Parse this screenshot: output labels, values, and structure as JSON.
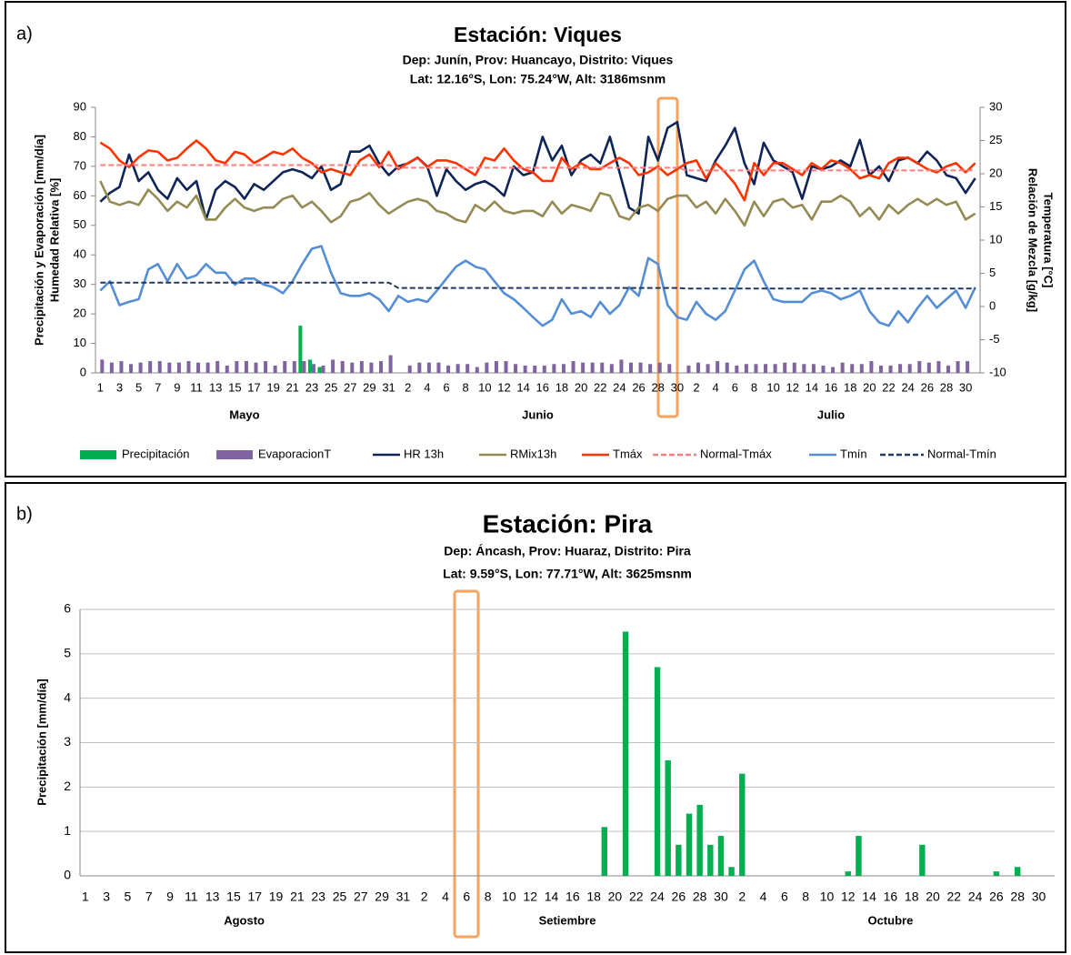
{
  "chart_data": [
    {
      "type": "combo",
      "panel_label": "a)",
      "title": "Estación: Viques",
      "subtitle": [
        "Dep: Junín, Prov: Huancayo, Distrito: Viques",
        "Lat: 12.16°S, Lon: 75.24°W, Alt: 3186msnm"
      ],
      "ylabel": [
        "Precipitación y Evaporación [mm/día]",
        "Humedad Relativa [%]"
      ],
      "y2label": [
        "Temperatura [°C]",
        "Relación de Mezcla [g/kg]"
      ],
      "categories": [
        1,
        null,
        3,
        null,
        5,
        null,
        7,
        null,
        9,
        null,
        11,
        null,
        13,
        null,
        15,
        null,
        17,
        null,
        19,
        null,
        21,
        null,
        23,
        null,
        25,
        null,
        27,
        null,
        29,
        null,
        31,
        null,
        2,
        null,
        4,
        null,
        6,
        null,
        8,
        null,
        10,
        null,
        12,
        null,
        14,
        null,
        16,
        null,
        18,
        null,
        20,
        null,
        22,
        null,
        24,
        null,
        26,
        null,
        28,
        null,
        30,
        null,
        2,
        null,
        4,
        null,
        6,
        null,
        8,
        null,
        10,
        null,
        12,
        null,
        14,
        null,
        16,
        null,
        18,
        null,
        20,
        null,
        22,
        null,
        24,
        null,
        26,
        null,
        28,
        null,
        30,
        null
      ],
      "x_groups": [
        "Mayo",
        "Junio",
        "Julio"
      ],
      "ylim": [
        0,
        90
      ],
      "yticks": [
        0,
        10,
        20,
        30,
        40,
        50,
        60,
        70,
        80,
        90
      ],
      "y2lim": [
        -10,
        30
      ],
      "y2ticks": [
        -10,
        -5,
        0,
        5,
        10,
        15,
        20,
        25,
        30
      ],
      "grid": false,
      "series": [
        {
          "name": "Precipitación",
          "type": "bar",
          "color": "#00b050",
          "values": [
            0,
            0,
            0,
            0,
            0,
            0,
            0,
            0,
            0,
            0,
            0,
            0,
            0,
            0,
            0,
            0,
            0,
            0,
            0,
            0,
            0,
            16,
            4.5,
            2,
            0,
            0,
            0,
            0,
            0,
            0,
            0,
            0,
            0,
            0,
            0,
            0,
            0,
            0,
            0,
            0,
            0,
            0,
            0,
            0,
            0,
            0,
            0,
            0,
            0,
            0,
            0,
            0,
            0,
            0,
            0,
            0,
            0,
            0,
            0,
            0,
            0,
            0,
            0,
            0,
            0,
            0,
            0,
            0,
            0,
            0,
            0,
            0,
            0,
            0,
            0,
            0,
            0,
            0,
            0,
            0,
            0,
            0,
            0,
            0,
            0,
            0,
            0,
            0,
            0,
            0,
            0,
            0
          ]
        },
        {
          "name": "EvaporacionT",
          "type": "bar",
          "color": "#8064a2",
          "values": [
            4.5,
            3.5,
            4,
            3,
            3.5,
            4,
            4,
            3.5,
            3.5,
            4,
            3.5,
            3.5,
            4,
            2.5,
            4,
            4,
            3.5,
            4,
            2.5,
            4,
            4,
            4,
            3,
            2.5,
            4.5,
            4,
            3.5,
            4,
            3.5,
            4,
            6,
            null,
            2.5,
            3.5,
            3.5,
            3.5,
            2.5,
            3,
            3,
            2,
            3.5,
            4,
            4,
            3,
            2.5,
            2.5,
            2.5,
            3,
            3,
            4,
            3.5,
            3.5,
            3.5,
            3,
            4.5,
            3.5,
            3.5,
            3,
            3.5,
            3,
            null,
            2.5,
            3.5,
            3,
            4,
            3.5,
            2.5,
            3,
            3,
            3,
            3,
            3.5,
            3.5,
            3,
            3,
            2.5,
            2,
            3.5,
            3,
            3,
            4,
            2.5,
            2.5,
            3,
            3,
            4,
            3.5,
            4,
            2.5,
            4,
            4,
            null
          ]
        },
        {
          "name": "HR 13h",
          "type": "line",
          "color": "#0f2457",
          "values": [
            58,
            61,
            63,
            74,
            65,
            68,
            62,
            59,
            66,
            62,
            65,
            52,
            62,
            65,
            63,
            59,
            64,
            62,
            65,
            68,
            69,
            68,
            66,
            70,
            62,
            64,
            75,
            75,
            77,
            71,
            67,
            70,
            71,
            73,
            70,
            60,
            69,
            65,
            62,
            64,
            65,
            63,
            60,
            70,
            67,
            68,
            80,
            72,
            77,
            67,
            72,
            74,
            71,
            80,
            68,
            56,
            54,
            80,
            72,
            83,
            85,
            67,
            66,
            65,
            72,
            77,
            83,
            71,
            64,
            78,
            72,
            70,
            68,
            59,
            70,
            69,
            70,
            72,
            70,
            79,
            67,
            70,
            65,
            72,
            73,
            71,
            75,
            72,
            67,
            66,
            61,
            66
          ]
        },
        {
          "name": "RMix13h",
          "type": "line",
          "axis": "y2",
          "color": "#948a54",
          "values": [
            18.9,
            15.8,
            15.3,
            15.8,
            15.3,
            17.6,
            16.2,
            14.4,
            15.8,
            14.9,
            16.7,
            13.1,
            13.1,
            14.9,
            16.2,
            14.9,
            14.4,
            14.9,
            14.9,
            16.2,
            16.7,
            14.9,
            15.8,
            14.4,
            12.7,
            13.6,
            15.8,
            16.2,
            17.1,
            15.3,
            14,
            14.9,
            15.8,
            16.2,
            15.8,
            14.4,
            14,
            13.1,
            12.7,
            15.3,
            14.4,
            15.8,
            14.4,
            14,
            14.4,
            14.4,
            13.6,
            15.8,
            14,
            15.3,
            14.9,
            14.4,
            17.1,
            16.7,
            13.6,
            13.1,
            14.9,
            15.3,
            14.4,
            16.2,
            16.7,
            16.7,
            14.9,
            15.8,
            14,
            16.2,
            14.4,
            12.2,
            15.8,
            13.6,
            15.8,
            16.2,
            14.9,
            15.3,
            13.1,
            15.8,
            15.8,
            16.7,
            15.8,
            13.6,
            14.9,
            13.1,
            15.3,
            14,
            15.3,
            16.2,
            15.3,
            16.2,
            15.3,
            15.8,
            13.1,
            14
          ]
        },
        {
          "name": "Tmáx",
          "type": "line",
          "axis": "y2",
          "color": "#ff3300",
          "values": [
            24.7,
            23.8,
            22,
            21,
            22.5,
            23.5,
            23.3,
            22,
            22.4,
            23.8,
            25,
            23.8,
            22,
            21.6,
            23.3,
            22.9,
            21.6,
            22.4,
            23.3,
            22.9,
            23.8,
            22.4,
            21.6,
            20.2,
            20.7,
            20.2,
            19.8,
            22,
            22.9,
            21,
            23.3,
            20.7,
            21.6,
            22.4,
            21,
            22,
            22,
            21.6,
            20.7,
            19.8,
            22.4,
            22,
            23.8,
            22,
            20.7,
            20.2,
            18.9,
            18.9,
            22.4,
            20.7,
            21.6,
            20.7,
            20.7,
            21.6,
            22.4,
            21.6,
            19.8,
            20.2,
            21.1,
            19.8,
            20.7,
            21.6,
            22,
            19.3,
            21.6,
            20.2,
            18.5,
            16,
            21.6,
            19.8,
            21.6,
            21.6,
            20.7,
            19.8,
            21.6,
            20.7,
            22,
            21.6,
            20.7,
            19.3,
            19.8,
            19.3,
            21.6,
            22.4,
            22.4,
            21.6,
            20.7,
            20.2,
            21.1,
            21.6,
            20.2,
            21.6
          ]
        },
        {
          "name": "Normal-Tmáx",
          "type": "line",
          "dash": true,
          "axis": "y2",
          "color": "#ff7c80",
          "values": [
            21.3,
            21.3,
            21.3,
            21.3,
            21.3,
            21.3,
            21.3,
            21.3,
            21.3,
            21.3,
            21.3,
            21.3,
            21.3,
            21.3,
            21.3,
            21.3,
            21.3,
            21.3,
            21.3,
            21.3,
            21.3,
            21.3,
            21.3,
            21.3,
            21.3,
            21.3,
            21.3,
            21.3,
            21.3,
            21.3,
            21.3,
            20.9,
            20.9,
            20.9,
            20.9,
            20.9,
            20.9,
            20.9,
            20.9,
            20.9,
            20.9,
            20.9,
            20.9,
            20.9,
            20.9,
            20.9,
            20.9,
            20.9,
            20.9,
            20.9,
            20.9,
            20.9,
            20.9,
            20.9,
            20.9,
            20.9,
            20.9,
            20.9,
            20.9,
            20.9,
            20.9,
            20.5,
            20.5,
            20.5,
            20.5,
            20.5,
            20.5,
            20.5,
            20.5,
            20.5,
            20.5,
            20.5,
            20.5,
            20.5,
            20.5,
            20.5,
            20.5,
            20.5,
            20.5,
            20.5,
            20.5,
            20.5,
            20.5,
            20.5,
            20.5,
            20.5,
            20.5,
            20.5,
            20.5,
            20.5,
            20.5,
            20.5
          ]
        },
        {
          "name": "Tmín",
          "type": "line",
          "axis": "y2",
          "color": "#558ed5",
          "values": [
            2.4,
            3.8,
            0.2,
            0.7,
            1.1,
            5.6,
            6.4,
            3.8,
            6.4,
            4.2,
            4.7,
            6.4,
            5.1,
            5.1,
            3.3,
            4.2,
            4.2,
            3.3,
            2.9,
            2,
            3.8,
            6.4,
            8.7,
            9.1,
            5.1,
            2,
            1.6,
            1.6,
            2,
            1.1,
            -0.7,
            1.6,
            0.7,
            1.1,
            0.7,
            2.4,
            4.2,
            6,
            6.9,
            6,
            5.6,
            3.8,
            2,
            1.1,
            -0.2,
            -1.6,
            -2.9,
            -2,
            1.1,
            -1.1,
            -0.7,
            -1.6,
            0.7,
            -1.1,
            0.2,
            2.9,
            1.6,
            7.3,
            6.4,
            0.2,
            -1.6,
            -2,
            0.7,
            -1.1,
            -2,
            -0.7,
            2.4,
            5.6,
            6.9,
            3.8,
            1.1,
            0.7,
            0.7,
            0.7,
            2,
            2.4,
            2,
            1.1,
            1.6,
            2.4,
            -0.7,
            -2.4,
            -2.9,
            -0.7,
            -2.4,
            -0.2,
            1.6,
            -0.2,
            1.1,
            2.4,
            -0.2,
            2.9
          ]
        },
        {
          "name": "Normal-Tmín",
          "type": "line",
          "dash": true,
          "axis": "y2",
          "color": "#1f3864",
          "values": [
            3.6,
            3.6,
            3.6,
            3.6,
            3.6,
            3.6,
            3.6,
            3.6,
            3.6,
            3.6,
            3.6,
            3.6,
            3.6,
            3.6,
            3.6,
            3.6,
            3.6,
            3.6,
            3.6,
            3.6,
            3.6,
            3.6,
            3.6,
            3.6,
            3.6,
            3.6,
            3.6,
            3.6,
            3.6,
            3.6,
            3.6,
            2.8,
            2.8,
            2.8,
            2.8,
            2.8,
            2.8,
            2.8,
            2.8,
            2.8,
            2.8,
            2.8,
            2.8,
            2.8,
            2.8,
            2.8,
            2.8,
            2.8,
            2.8,
            2.8,
            2.8,
            2.8,
            2.8,
            2.8,
            2.8,
            2.8,
            2.8,
            2.8,
            2.8,
            2.8,
            2.8,
            2.7,
            2.7,
            2.7,
            2.7,
            2.7,
            2.7,
            2.7,
            2.7,
            2.7,
            2.7,
            2.7,
            2.7,
            2.7,
            2.7,
            2.7,
            2.7,
            2.7,
            2.7,
            2.7,
            2.7,
            2.7,
            2.7,
            2.7,
            2.7,
            2.7,
            2.7,
            2.7,
            2.7,
            2.7,
            2.7,
            2.7
          ]
        }
      ]
    },
    {
      "type": "bar",
      "panel_label": "b)",
      "title": "Estación: Pira",
      "subtitle": [
        "Dep: Áncash, Prov: Huaraz, Distrito: Pira",
        "Lat: 9.59°S, Lon: 77.71°W, Alt: 3625msnm"
      ],
      "ylabel": [
        "Precipitación [mm/día]"
      ],
      "categories": [
        1,
        null,
        3,
        null,
        5,
        null,
        7,
        null,
        9,
        null,
        11,
        null,
        13,
        null,
        15,
        null,
        17,
        null,
        19,
        null,
        21,
        null,
        23,
        null,
        25,
        null,
        27,
        null,
        29,
        null,
        31,
        null,
        2,
        null,
        4,
        null,
        6,
        null,
        8,
        null,
        10,
        null,
        12,
        null,
        14,
        null,
        16,
        null,
        18,
        null,
        20,
        null,
        22,
        null,
        24,
        null,
        26,
        null,
        28,
        null,
        30,
        null,
        2,
        null,
        4,
        null,
        6,
        null,
        8,
        null,
        10,
        null,
        12,
        null,
        14,
        null,
        16,
        null,
        18,
        null,
        20,
        null,
        22,
        null,
        24,
        null,
        26,
        null,
        28,
        null,
        30,
        null
      ],
      "x_groups": [
        "Agosto",
        "Setiembre",
        "Octubre"
      ],
      "ylim": [
        0,
        6
      ],
      "yticks": [
        0,
        1,
        2,
        3,
        4,
        5,
        6
      ],
      "grid": true,
      "color": "#00b050",
      "values": [
        0,
        0,
        0,
        0,
        0,
        0,
        0,
        0,
        0,
        0,
        0,
        0,
        0,
        0,
        0,
        0,
        0,
        0,
        0,
        0,
        0,
        0,
        0,
        0,
        0,
        0,
        0,
        0,
        0,
        0,
        0,
        0,
        0,
        0,
        0,
        0,
        0,
        0,
        0,
        0,
        0,
        0,
        0,
        0,
        0,
        0,
        0,
        0,
        0,
        1.1,
        0,
        5.5,
        0,
        0,
        4.7,
        2.6,
        0.7,
        1.4,
        1.6,
        0.7,
        0.9,
        0.2,
        2.3,
        0,
        0,
        0,
        0,
        0,
        0,
        0,
        0,
        0,
        0.1,
        0.9,
        0,
        0,
        0,
        0,
        0,
        0.7,
        0,
        0,
        0,
        0,
        0,
        0,
        0.1,
        0,
        0.2,
        0,
        0,
        0
      ]
    }
  ]
}
